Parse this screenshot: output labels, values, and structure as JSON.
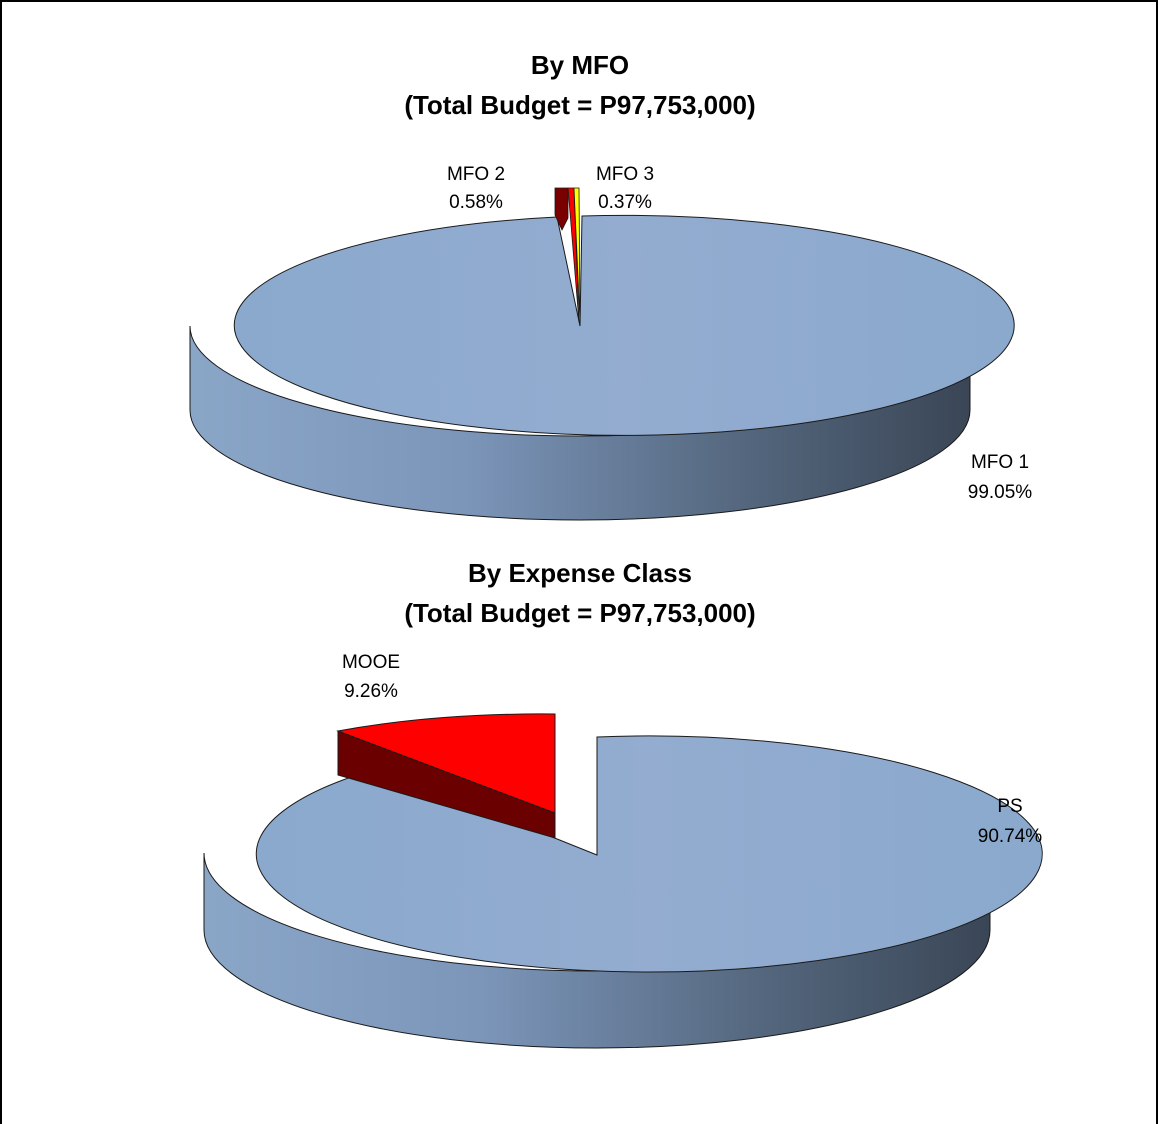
{
  "chart_data": [
    {
      "type": "pie",
      "title": "By MFO",
      "subtitle": "(Total Budget = P97,753,000)",
      "categories": [
        "MFO 1",
        "MFO 2",
        "MFO 3"
      ],
      "values": [
        99.05,
        0.58,
        0.37
      ],
      "labels": [
        {
          "name": "MFO 1",
          "pct": "99.05%"
        },
        {
          "name": "MFO 2",
          "pct": "0.58%"
        },
        {
          "name": "MFO 3",
          "pct": "0.37%"
        }
      ],
      "colors": [
        "#8fa9cc",
        "#ff0000",
        "#ffff00"
      ],
      "style": "3d-exploded"
    },
    {
      "type": "pie",
      "title": "By Expense Class",
      "subtitle": "(Total Budget = P97,753,000)",
      "categories": [
        "PS",
        "MOOE"
      ],
      "values": [
        90.74,
        9.26
      ],
      "labels": [
        {
          "name": "PS",
          "pct": "90.74%"
        },
        {
          "name": "MOOE",
          "pct": "9.26%"
        }
      ],
      "colors": [
        "#8fa9cc",
        "#ff0000"
      ],
      "style": "3d-exploded"
    }
  ]
}
